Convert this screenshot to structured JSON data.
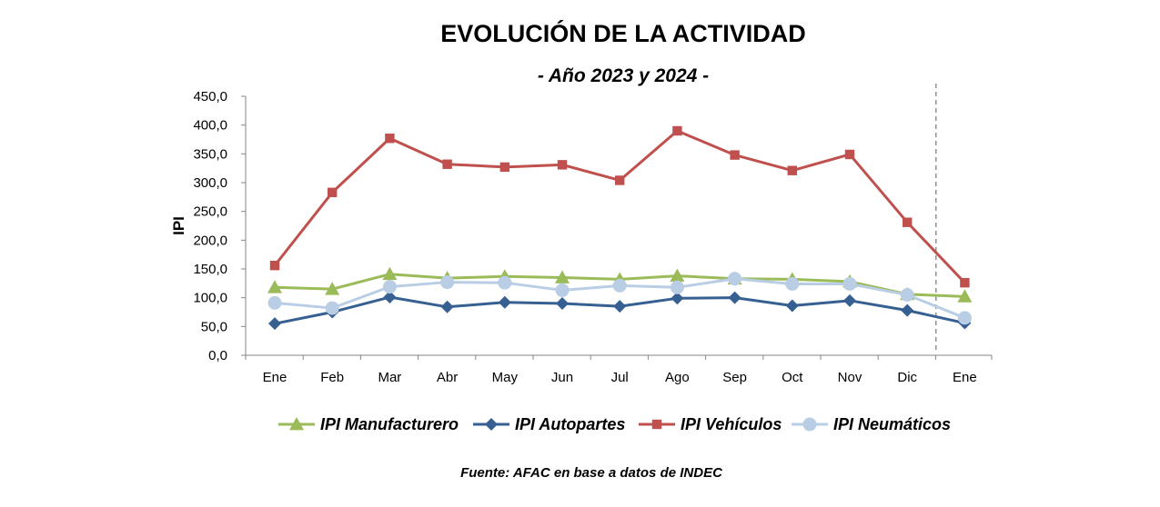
{
  "chart_data": {
    "type": "line",
    "title": "EVOLUCIÓN DE LA ACTIVIDAD",
    "subtitle": "- Año 2023 y 2024 -",
    "ylabel": "IPI",
    "xlabel": "",
    "categories": [
      "Ene",
      "Feb",
      "Mar",
      "Abr",
      "May",
      "Jun",
      "Jul",
      "Ago",
      "Sep",
      "Oct",
      "Nov",
      "Dic",
      "Ene"
    ],
    "yticks": [
      "0,0",
      "50,0",
      "100,0",
      "150,0",
      "200,0",
      "250,0",
      "300,0",
      "350,0",
      "400,0",
      "450,0"
    ],
    "ylim": [
      0,
      450
    ],
    "series": [
      {
        "name": "IPI Manufacturero",
        "color": "#9BBB59",
        "marker": "triangle",
        "values": [
          118,
          115,
          141,
          134,
          137,
          135,
          132,
          138,
          133,
          132,
          128,
          106,
          102
        ]
      },
      {
        "name": "IPI Autopartes",
        "color": "#376092",
        "marker": "diamond",
        "values": [
          55,
          75,
          101,
          84,
          92,
          90,
          85,
          99,
          100,
          86,
          95,
          78,
          56
        ]
      },
      {
        "name": "IPI Vehículos",
        "color": "#C0504D",
        "marker": "square",
        "values": [
          156,
          283,
          377,
          332,
          327,
          331,
          304,
          390,
          348,
          321,
          349,
          231,
          126
        ]
      },
      {
        "name": "IPI Neumáticos",
        "color": "#B9CDE5",
        "marker": "circle",
        "values": [
          91,
          82,
          119,
          127,
          126,
          113,
          121,
          118,
          133,
          124,
          124,
          105,
          65
        ]
      }
    ],
    "divider_after_category": "Dic",
    "grid": false,
    "legend": "bottom"
  },
  "source": "Fuente: AFAC en base a datos de INDEC"
}
